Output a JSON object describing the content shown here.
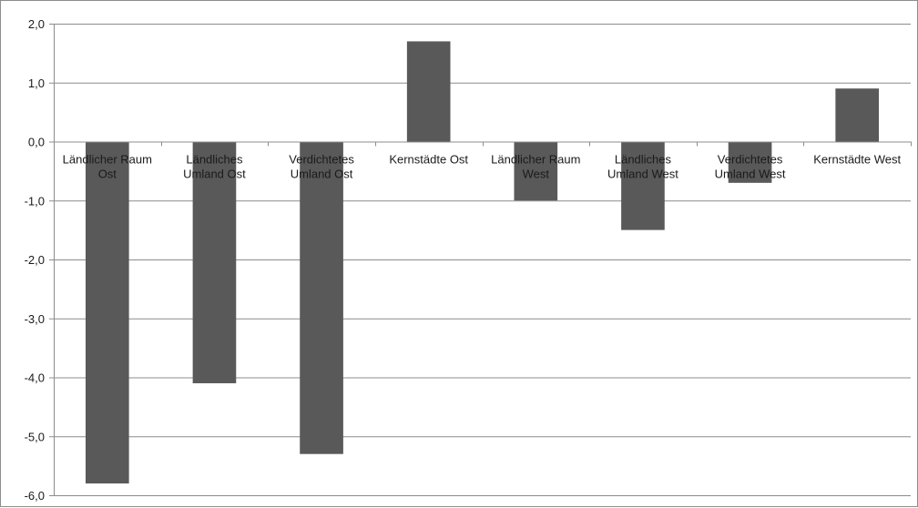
{
  "chart_data": {
    "type": "bar",
    "title": "",
    "xlabel": "",
    "ylabel": "",
    "ylim": [
      -6,
      2
    ],
    "yticks": [
      2,
      1,
      0,
      -1,
      -2,
      -3,
      -4,
      -5,
      -6
    ],
    "ytick_labels": [
      "2,0",
      "1,0",
      "0,0",
      "-1,0",
      "-2,0",
      "-3,0",
      "-4,0",
      "-5,0",
      "-6,0"
    ],
    "grid": true,
    "legend": "none",
    "categories": [
      [
        "Ländlicher Raum",
        "Ost"
      ],
      [
        "Ländliches",
        "Umland Ost"
      ],
      [
        "Verdichtetes",
        "Umland Ost"
      ],
      [
        "Kernstädte Ost"
      ],
      [
        "Ländlicher Raum",
        "West"
      ],
      [
        "Ländliches",
        "Umland West"
      ],
      [
        "Verdichtetes",
        "Umland West"
      ],
      [
        "Kernstädte West"
      ]
    ],
    "values": [
      -5.8,
      -4.1,
      -5.3,
      1.7,
      -1.0,
      -1.5,
      -0.7,
      0.9
    ],
    "bar_color": "#595959",
    "grid_color": "#8c8c8c"
  }
}
